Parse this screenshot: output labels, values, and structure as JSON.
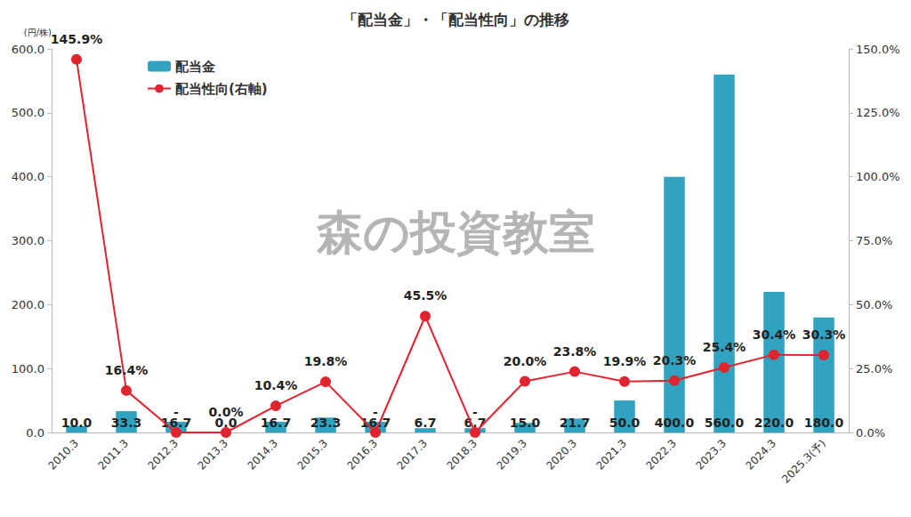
{
  "chart_data": {
    "type": "bar",
    "title": "「配当金」・「配当性向」の推移",
    "ylabel": "(円/株)",
    "annotations": [
      "森の投資教室"
    ],
    "categories": [
      "2010.3",
      "2011.3",
      "2012.3",
      "2013.3",
      "2014.3",
      "2015.3",
      "2016.3",
      "2017.3",
      "2018.3",
      "2019.3",
      "2020.3",
      "2021.3",
      "2022.3",
      "2023.3",
      "2024.3",
      "2025.3(予)"
    ],
    "series": [
      {
        "name": "配当金",
        "type": "bar",
        "color": "#31a2c0",
        "values": [
          10.0,
          33.3,
          16.7,
          0.0,
          16.7,
          23.3,
          16.7,
          6.7,
          6.7,
          15.0,
          21.7,
          50.0,
          400.0,
          560.0,
          220.0,
          180.0
        ],
        "value_labels": [
          "10.0",
          "33.3",
          "16.7",
          "0.0",
          "16.7",
          "23.3",
          "16.7",
          "6.7",
          "6.7",
          "15.0",
          "21.7",
          "50.0",
          "400.0",
          "560.0",
          "220.0",
          "180.0"
        ]
      },
      {
        "name": "配当性向(右軸)",
        "type": "line",
        "axis": "y2",
        "color": "#e0242f",
        "marker": "circle",
        "values": [
          145.9,
          16.4,
          0,
          0.0,
          10.4,
          19.8,
          0,
          45.5,
          0,
          20.0,
          23.8,
          19.9,
          20.3,
          25.4,
          30.4,
          30.3
        ],
        "value_labels": [
          "145.9%",
          "16.4%",
          "-",
          "0.0%",
          "10.4%",
          "19.8%",
          "-",
          "45.5%",
          "-",
          "20.0%",
          "23.8%",
          "19.9%",
          "20.3%",
          "25.4%",
          "30.4%",
          "30.3%"
        ]
      }
    ],
    "ylim": [
      0,
      600
    ],
    "yticks": [
      {
        "value": 0,
        "label": "0.0"
      },
      {
        "value": 100,
        "label": "100.0"
      },
      {
        "value": 200,
        "label": "200.0"
      },
      {
        "value": 300,
        "label": "300.0"
      },
      {
        "value": 400,
        "label": "400.0"
      },
      {
        "value": 500,
        "label": "500.0"
      },
      {
        "value": 600,
        "label": "600.0"
      }
    ],
    "y2lim": [
      0,
      150
    ],
    "y2ticks": [
      {
        "value": 0,
        "label": "0.0%"
      },
      {
        "value": 25,
        "label": "25.0%"
      },
      {
        "value": 50,
        "label": "50.0%"
      },
      {
        "value": 75,
        "label": "75.0%"
      },
      {
        "value": 100,
        "label": "100.0%"
      },
      {
        "value": 125,
        "label": "125.0%"
      },
      {
        "value": 150,
        "label": "150.0%"
      }
    ],
    "legend": "upper left",
    "data_labels": true,
    "grid": false
  }
}
